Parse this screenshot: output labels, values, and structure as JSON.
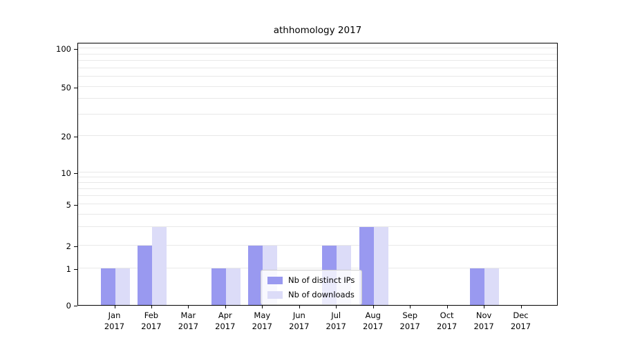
{
  "title": "athhomology 2017",
  "chart_data": {
    "type": "bar",
    "categories": [
      "Jan 2017",
      "Feb 2017",
      "Mar 2017",
      "Apr 2017",
      "May 2017",
      "Jun 2017",
      "Jul 2017",
      "Aug 2017",
      "Sep 2017",
      "Oct 2017",
      "Nov 2017",
      "Dec 2017"
    ],
    "x_tick_lines": [
      [
        "Jan",
        "2017"
      ],
      [
        "Feb",
        "2017"
      ],
      [
        "Mar",
        "2017"
      ],
      [
        "Apr",
        "2017"
      ],
      [
        "May",
        "2017"
      ],
      [
        "Jun",
        "2017"
      ],
      [
        "Jul",
        "2017"
      ],
      [
        "Aug",
        "2017"
      ],
      [
        "Sep",
        "2017"
      ],
      [
        "Oct",
        "2017"
      ],
      [
        "Nov",
        "2017"
      ],
      [
        "Dec",
        "2017"
      ]
    ],
    "series": [
      {
        "name": "Nb of distinct IPs",
        "color": "#9999f0",
        "values": [
          1,
          2,
          0,
          1,
          2,
          0,
          2,
          3,
          0,
          0,
          1,
          0
        ]
      },
      {
        "name": "Nb of downloads",
        "color": "#dcdcf8",
        "values": [
          1,
          3,
          0,
          1,
          2,
          0,
          2,
          3,
          0,
          0,
          1,
          0
        ]
      }
    ],
    "title": "athhomology 2017",
    "xlabel": "",
    "ylabel": "",
    "yscale": "log-like (0,1,2,5,10,20,50,100)",
    "ytick_labels": [
      "0",
      "1",
      "2",
      "5",
      "10",
      "20",
      "50",
      "100"
    ],
    "ylim": [
      0,
      100
    ],
    "grid": "horizontal minor gridlines on",
    "legend_position": "lower center inside plot"
  },
  "legend": {
    "items": [
      {
        "label": "Nb of distinct IPs",
        "color": "#9999f0"
      },
      {
        "label": "Nb of downloads",
        "color": "#dcdcf8"
      }
    ]
  }
}
